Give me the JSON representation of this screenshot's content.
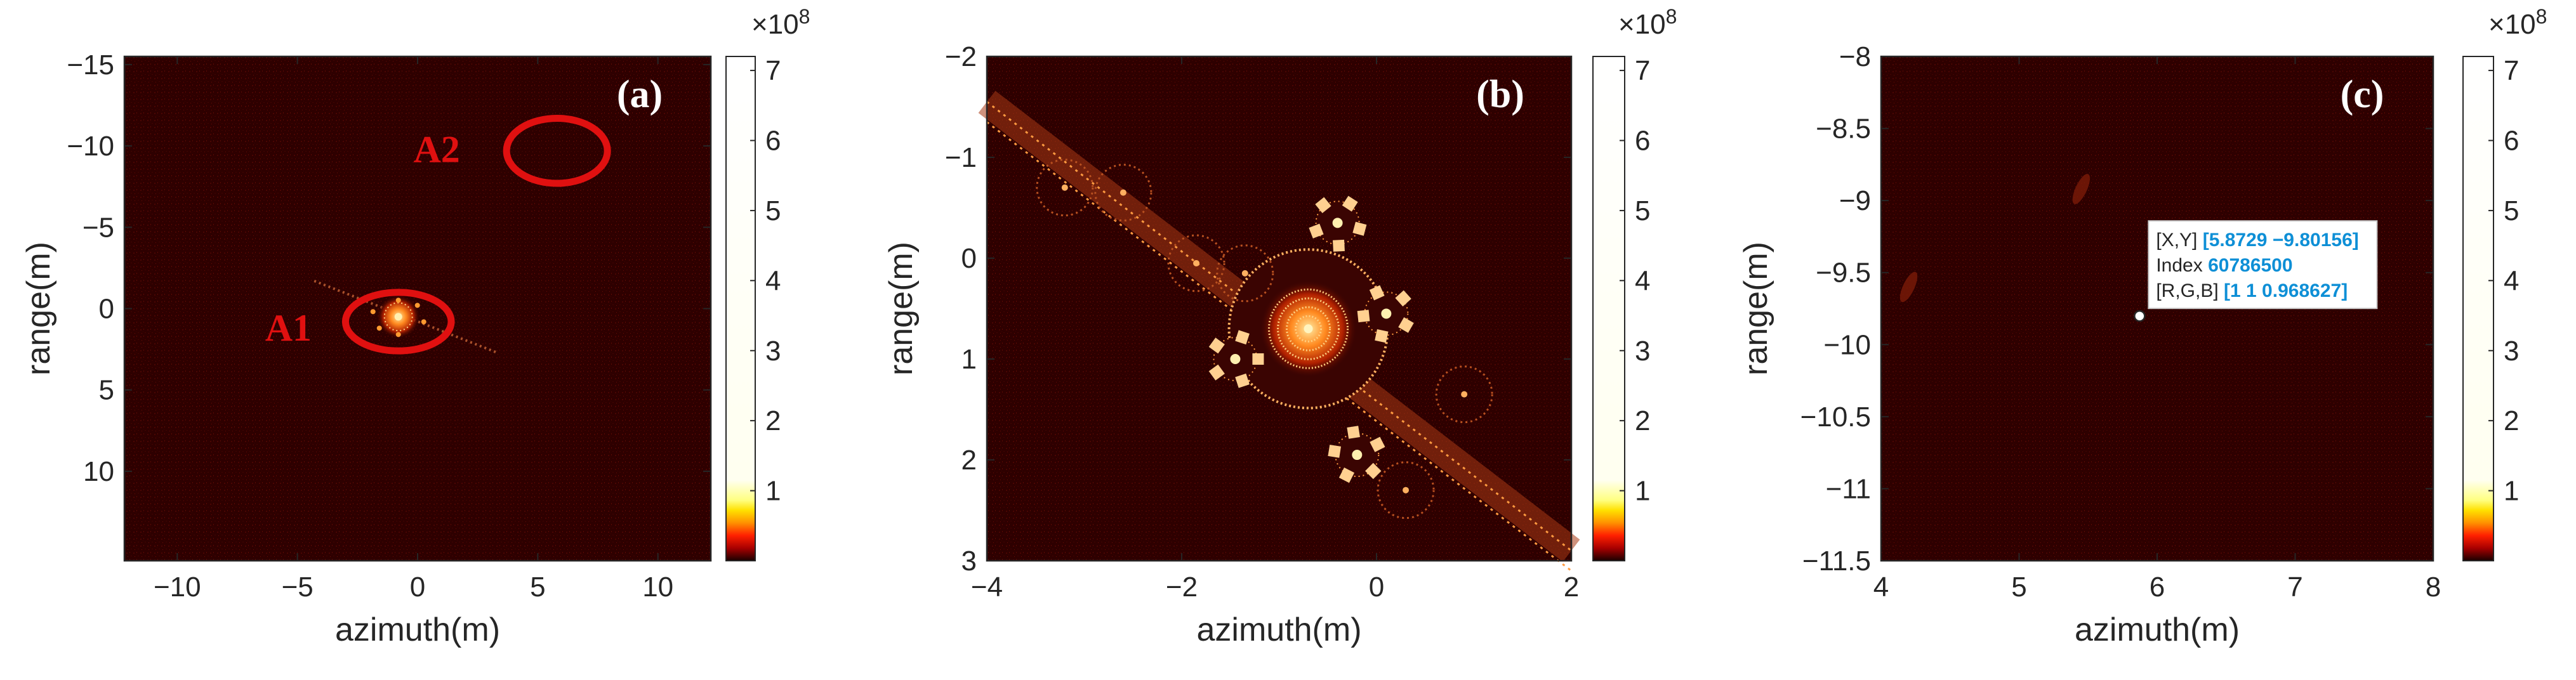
{
  "chart_data": [
    {
      "type": "heatmap",
      "panel": "(a)",
      "xlabel": "azimuth(m)",
      "ylabel": "range(m)",
      "xlim": [
        -12.2,
        12.2
      ],
      "ylim": [
        -15.5,
        15.5
      ],
      "y_reversed": true,
      "xticks": [
        -10,
        -5,
        0,
        5,
        10
      ],
      "yticks": [
        -15,
        -10,
        -5,
        0,
        5,
        10
      ],
      "xtick_labels": [
        "−10",
        "−5",
        "0",
        "5",
        "10"
      ],
      "ytick_labels": [
        "−15",
        "−10",
        "−5",
        "0",
        "5",
        "10"
      ],
      "colormap": "hot",
      "colorbar": {
        "ticks": [
          1,
          2,
          3,
          4,
          5,
          6,
          7
        ],
        "range": [
          0,
          7.2
        ],
        "exponent": "×10^8",
        "exponent_label": "×10",
        "exponent_power": "8"
      },
      "annotations": [
        {
          "label": "A1",
          "x": -0.8,
          "y": 0.8,
          "rx": 2.2,
          "ry": 1.8
        },
        {
          "label": "A2",
          "x": 5.8,
          "y": -9.7,
          "rx": 2.1,
          "ry": 2.0
        }
      ],
      "target": {
        "x": -0.8,
        "y": 0.5
      }
    },
    {
      "type": "heatmap",
      "panel": "(b)",
      "xlabel": "azimuth(m)",
      "ylabel": "range(m)",
      "xlim": [
        -4,
        2
      ],
      "ylim": [
        -2,
        3
      ],
      "y_reversed": true,
      "xticks": [
        -4,
        -2,
        0,
        2
      ],
      "yticks": [
        -2,
        -1,
        0,
        1,
        2,
        3
      ],
      "xtick_labels": [
        "−4",
        "−2",
        "0",
        "2"
      ],
      "ytick_labels": [
        "−2",
        "−1",
        "0",
        "1",
        "2",
        "3"
      ],
      "colormap": "hot",
      "colorbar": {
        "ticks": [
          1,
          2,
          3,
          4,
          5,
          6,
          7
        ],
        "range": [
          0,
          7.2
        ],
        "exponent": "×10^8",
        "exponent_label": "×10",
        "exponent_power": "8"
      },
      "target": {
        "x": -0.7,
        "y": 0.7
      }
    },
    {
      "type": "heatmap",
      "panel": "(c)",
      "xlabel": "azimuth(m)",
      "ylabel": "range(m)",
      "xlim": [
        4,
        8
      ],
      "ylim": [
        -11.5,
        -8
      ],
      "y_reversed": false,
      "xticks": [
        4,
        5,
        6,
        7,
        8
      ],
      "yticks": [
        -11.5,
        -11,
        -10.5,
        -10,
        -9.5,
        -9,
        -8.5,
        -8
      ],
      "xtick_labels": [
        "4",
        "5",
        "6",
        "7",
        "8"
      ],
      "ytick_labels": [
        "−11.5",
        "−11",
        "−10.5",
        "−10",
        "−9.5",
        "−9",
        "−8.5",
        "−8"
      ],
      "colormap": "hot",
      "colorbar": {
        "ticks": [
          1,
          2,
          3,
          4,
          5,
          6,
          7
        ],
        "range": [
          0,
          7.2
        ],
        "exponent": "×10^8",
        "exponent_label": "×10",
        "exponent_power": "8"
      },
      "datatip": {
        "x": 5.8729,
        "y": -9.80156,
        "xy_label": "[X,Y]",
        "xy_value": "[5.8729 −9.80156]",
        "index_label": "Index",
        "index_value": "60786500",
        "rgb_label": "[R,G,B]",
        "rgb_value": "[1 1 0.968627]"
      }
    }
  ],
  "colors": {
    "background_dark": "#300000",
    "annotation_red": "#e01010",
    "datatip_value": "#0e8fd6"
  }
}
